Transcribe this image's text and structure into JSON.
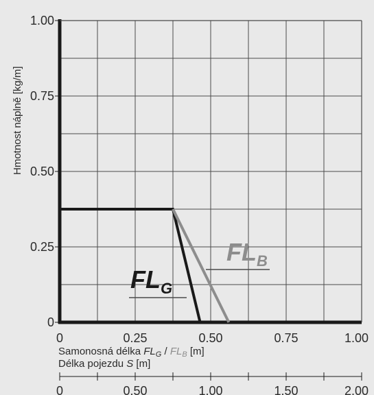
{
  "colors": {
    "background": "#e9e9e9",
    "grid": "#4a4a4a",
    "axis": "#1a1a1a",
    "text": "#2b2b2b",
    "fl_g": "#1a1a1a",
    "fl_b": "#8d8d8d"
  },
  "chart_data": {
    "type": "line",
    "grid": true,
    "xlim": [
      0,
      1.0
    ],
    "ylim": [
      0,
      1.0
    ],
    "x_ticks": [
      "0",
      "0.25",
      "0.50",
      "0.75",
      "1.00"
    ],
    "y_ticks": [
      "0",
      "0.25",
      "0.50",
      "0.75",
      "1.00"
    ],
    "ylabel": "Hmotnost náplně [kg/m]",
    "xlabel": {
      "prefix": "Samonosná délka ",
      "fl": "FL",
      "sub_g": "G",
      "sep": " / ",
      "sub_b": "B",
      "unit": " [m]"
    },
    "secondary_axis": {
      "label_prefix": "Délka pojezdu ",
      "label_var": "S",
      "label_unit": " [m]",
      "ticks": [
        "0",
        "0.50",
        "1.00",
        "1.50",
        "2.00"
      ],
      "xlim": [
        0,
        2.0
      ]
    },
    "series": [
      {
        "name": "FLG",
        "label_main": "FL",
        "label_sub": "G",
        "points": [
          [
            0,
            0.375
          ],
          [
            0.375,
            0.375
          ],
          [
            0.465,
            0
          ]
        ]
      },
      {
        "name": "FLB",
        "label_main": "FL",
        "label_sub": "B",
        "points": [
          [
            0.375,
            0.375
          ],
          [
            0.56,
            0
          ]
        ]
      }
    ]
  }
}
